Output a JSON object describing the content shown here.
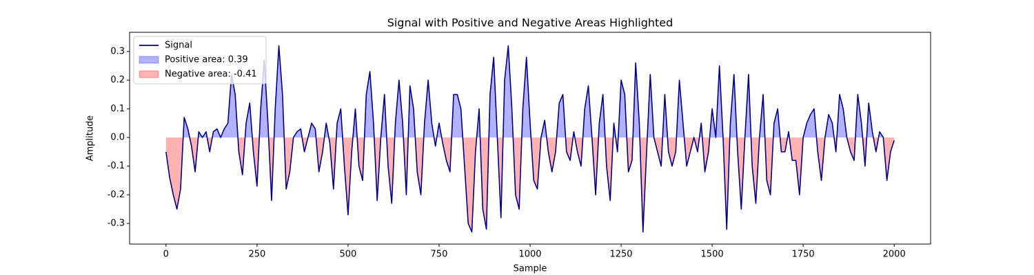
{
  "chart_data": {
    "type": "line",
    "title": "Signal with Positive and Negative Areas Highlighted",
    "xlabel": "Sample",
    "ylabel": "Amplitude",
    "x": [
      0,
      10,
      20,
      30,
      40,
      50,
      60,
      70,
      80,
      90,
      100,
      110,
      120,
      130,
      140,
      150,
      160,
      170,
      180,
      190,
      200,
      210,
      220,
      230,
      240,
      250,
      260,
      270,
      280,
      290,
      300,
      310,
      320,
      330,
      340,
      350,
      360,
      370,
      380,
      390,
      400,
      410,
      420,
      430,
      440,
      450,
      460,
      470,
      480,
      490,
      500,
      510,
      520,
      530,
      540,
      550,
      560,
      570,
      580,
      590,
      600,
      610,
      620,
      630,
      640,
      650,
      660,
      670,
      680,
      690,
      700,
      710,
      720,
      730,
      740,
      750,
      760,
      770,
      780,
      790,
      800,
      810,
      820,
      830,
      840,
      850,
      860,
      870,
      880,
      890,
      900,
      910,
      920,
      930,
      940,
      950,
      960,
      970,
      980,
      990,
      1000,
      1010,
      1020,
      1030,
      1040,
      1050,
      1060,
      1070,
      1080,
      1090,
      1100,
      1110,
      1120,
      1130,
      1140,
      1150,
      1160,
      1170,
      1180,
      1190,
      1200,
      1210,
      1220,
      1230,
      1240,
      1250,
      1260,
      1270,
      1280,
      1290,
      1300,
      1310,
      1320,
      1330,
      1340,
      1350,
      1360,
      1370,
      1380,
      1390,
      1400,
      1410,
      1420,
      1430,
      1440,
      1450,
      1460,
      1470,
      1480,
      1490,
      1500,
      1510,
      1520,
      1530,
      1540,
      1550,
      1560,
      1570,
      1580,
      1590,
      1600,
      1610,
      1620,
      1630,
      1640,
      1650,
      1660,
      1670,
      1680,
      1690,
      1700,
      1710,
      1720,
      1730,
      1740,
      1750,
      1760,
      1770,
      1780,
      1790,
      1800,
      1810,
      1820,
      1830,
      1840,
      1850,
      1860,
      1870,
      1880,
      1890,
      1900,
      1910,
      1920,
      1930,
      1940,
      1950,
      1960,
      1970,
      1980,
      1990,
      2000
    ],
    "series": [
      {
        "name": "Signal",
        "color": "#00008b",
        "values": [
          -0.05,
          -0.14,
          -0.2,
          -0.25,
          -0.18,
          0.07,
          0.03,
          -0.03,
          -0.12,
          0.02,
          0.0,
          0.02,
          -0.05,
          0.02,
          0.03,
          0.0,
          0.03,
          0.05,
          0.22,
          0.15,
          -0.05,
          -0.13,
          0.05,
          0.12,
          -0.05,
          -0.17,
          0.1,
          0.27,
          0.05,
          -0.22,
          0.1,
          0.32,
          0.15,
          -0.18,
          -0.12,
          0.0,
          0.02,
          0.03,
          -0.05,
          0.0,
          0.05,
          0.03,
          -0.12,
          -0.05,
          0.05,
          -0.02,
          -0.18,
          0.05,
          0.1,
          -0.1,
          -0.27,
          -0.05,
          0.1,
          -0.1,
          -0.15,
          0.15,
          0.23,
          0.05,
          -0.22,
          0.0,
          0.15,
          -0.1,
          -0.23,
          0.05,
          0.2,
          0.05,
          -0.2,
          0.18,
          0.1,
          -0.12,
          -0.2,
          0.05,
          0.2,
          0.05,
          -0.03,
          0.05,
          -0.02,
          -0.08,
          -0.12,
          0.15,
          0.15,
          0.1,
          -0.1,
          -0.3,
          -0.33,
          -0.05,
          0.1,
          -0.25,
          -0.32,
          0.15,
          0.28,
          0.0,
          -0.28,
          0.2,
          0.32,
          0.1,
          -0.2,
          -0.25,
          0.1,
          0.28,
          0.05,
          -0.15,
          -0.18,
          0.0,
          0.06,
          -0.05,
          -0.12,
          -0.05,
          0.12,
          0.15,
          -0.05,
          -0.08,
          0.02,
          -0.05,
          -0.1,
          0.1,
          0.18,
          0.0,
          -0.2,
          0.05,
          0.15,
          -0.1,
          -0.22,
          0.05,
          -0.05,
          0.2,
          0.15,
          -0.12,
          -0.08,
          0.26,
          0.05,
          -0.33,
          -0.05,
          0.22,
          0.0,
          -0.05,
          -0.1,
          0.15,
          -0.05,
          -0.1,
          -0.05,
          0.2,
          0.05,
          -0.1,
          -0.05,
          0.0,
          -0.05,
          0.05,
          -0.12,
          -0.05,
          0.1,
          0.0,
          0.25,
          0.0,
          -0.32,
          0.05,
          0.22,
          -0.05,
          -0.25,
          0.0,
          0.22,
          -0.1,
          -0.23,
          0.0,
          0.15,
          -0.15,
          -0.2,
          0.05,
          0.1,
          -0.05,
          -0.05,
          0.02,
          -0.08,
          -0.08,
          -0.2,
          0.0,
          0.05,
          0.08,
          0.1,
          -0.05,
          -0.15,
          0.0,
          0.08,
          0.05,
          -0.05,
          0.15,
          0.1,
          0.0,
          -0.05,
          -0.08,
          0.15,
          0.05,
          -0.1,
          0.12,
          0.02,
          -0.05,
          0.02,
          0.0,
          -0.15,
          -0.05,
          -0.01
        ]
      }
    ],
    "areas": [
      {
        "name": "Positive area: 0.39",
        "color": "#0000ff",
        "side": "positive"
      },
      {
        "name": "Negative area: -0.41",
        "color": "#ff0000",
        "side": "negative"
      }
    ],
    "xlim": [
      -100,
      2100
    ],
    "ylim": [
      -0.372,
      0.367
    ],
    "xticks": [
      0,
      250,
      500,
      750,
      1000,
      1250,
      1500,
      1750,
      2000
    ],
    "yticks": [
      -0.3,
      -0.2,
      -0.1,
      {
        "value": 0,
        "label": "0.0"
      },
      0.1,
      0.2,
      0.3
    ],
    "legend": "upper left"
  }
}
